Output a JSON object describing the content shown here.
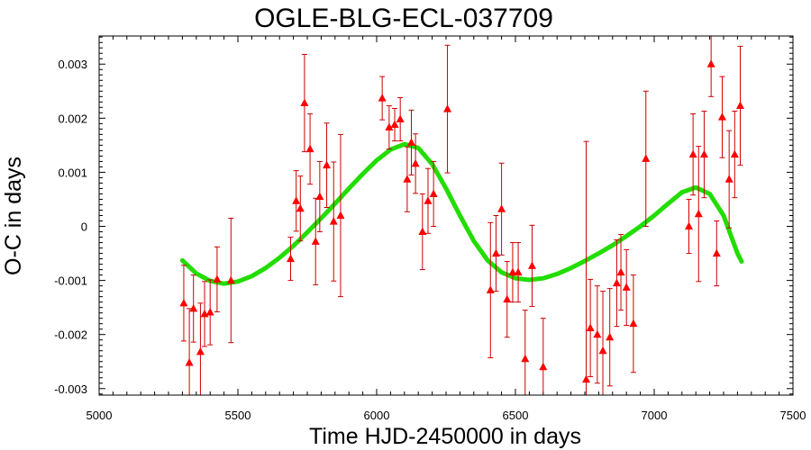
{
  "chart_data": {
    "type": "scatter",
    "title": "OGLE-BLG-ECL-037709",
    "xlabel": "Time HJD-2450000 in days",
    "ylabel": "O-C in days",
    "xlim": [
      5000,
      7500
    ],
    "ylim": [
      -0.00312,
      0.00352
    ],
    "x_ticks": [
      5000,
      5500,
      6000,
      6500,
      7000,
      7500
    ],
    "x_tick_labels": [
      "5000",
      "5500",
      "6000",
      "6500",
      "7000",
      "7500"
    ],
    "y_ticks": [
      -0.003,
      -0.002,
      -0.001,
      0,
      0.001,
      0.002,
      0.003
    ],
    "y_tick_labels": [
      "-0.003",
      "-0.002",
      "-0.001",
      "0",
      "0.001",
      "0.002",
      "0.003"
    ],
    "grid": false,
    "series": [
      {
        "kind": "observations_with_error_bars",
        "color": "#ff0000",
        "marker": "triangle",
        "points": [
          {
            "x": 5305,
            "y": -0.00142,
            "err": 0.0007
          },
          {
            "x": 5325,
            "y": -0.00252,
            "err": 0.001
          },
          {
            "x": 5340,
            "y": -0.00152,
            "err": 0.00062
          },
          {
            "x": 5365,
            "y": -0.00232,
            "err": 0.0009
          },
          {
            "x": 5380,
            "y": -0.00162,
            "err": 0.0006
          },
          {
            "x": 5400,
            "y": -0.00159,
            "err": 0.0006
          },
          {
            "x": 5425,
            "y": -0.00098,
            "err": 0.0006
          },
          {
            "x": 5475,
            "y": -0.001,
            "err": 0.00115
          },
          {
            "x": 5690,
            "y": -0.0006,
            "err": 0.0004
          },
          {
            "x": 5710,
            "y": 0.00047,
            "err": 0.00056
          },
          {
            "x": 5725,
            "y": 0.00033,
            "err": 0.0006
          },
          {
            "x": 5740,
            "y": 0.00228,
            "err": 0.0009
          },
          {
            "x": 5760,
            "y": 0.00143,
            "err": 0.00065
          },
          {
            "x": 5780,
            "y": -0.00028,
            "err": 0.0008
          },
          {
            "x": 5795,
            "y": 0.00055,
            "err": 0.00065
          },
          {
            "x": 5820,
            "y": 0.00113,
            "err": 0.00078
          },
          {
            "x": 5845,
            "y": 9e-05,
            "err": 0.0011
          },
          {
            "x": 5870,
            "y": 0.0002,
            "err": 0.0015
          },
          {
            "x": 6020,
            "y": 0.00237,
            "err": 0.0004
          },
          {
            "x": 6045,
            "y": 0.00183,
            "err": 0.0004
          },
          {
            "x": 6065,
            "y": 0.00188,
            "err": 0.0003
          },
          {
            "x": 6085,
            "y": 0.00198,
            "err": 0.0004
          },
          {
            "x": 6110,
            "y": 0.00087,
            "err": 0.0006
          },
          {
            "x": 6125,
            "y": 0.00155,
            "err": 0.0006
          },
          {
            "x": 6140,
            "y": 0.00116,
            "err": 0.00055
          },
          {
            "x": 6165,
            "y": -0.0001,
            "err": 0.0007
          },
          {
            "x": 6185,
            "y": 0.00047,
            "err": 0.0006
          },
          {
            "x": 6205,
            "y": 0.0006,
            "err": 0.0006
          },
          {
            "x": 6255,
            "y": 0.00217,
            "err": 0.00118
          },
          {
            "x": 6410,
            "y": -0.00118,
            "err": 0.00125
          },
          {
            "x": 6430,
            "y": -0.0005,
            "err": 0.0007
          },
          {
            "x": 6450,
            "y": 0.00032,
            "err": 0.00085
          },
          {
            "x": 6470,
            "y": -0.00135,
            "err": 0.0007
          },
          {
            "x": 6490,
            "y": -0.00085,
            "err": 0.00055
          },
          {
            "x": 6510,
            "y": -0.00085,
            "err": 0.00055
          },
          {
            "x": 6535,
            "y": -0.00245,
            "err": 0.0009
          },
          {
            "x": 6560,
            "y": -0.00073,
            "err": 0.00075
          },
          {
            "x": 6600,
            "y": -0.0026,
            "err": 0.0009
          },
          {
            "x": 6755,
            "y": -0.00283,
            "err": 0.0044
          },
          {
            "x": 6770,
            "y": -0.00188,
            "err": 0.0009
          },
          {
            "x": 6795,
            "y": -0.002,
            "err": 0.0009
          },
          {
            "x": 6815,
            "y": -0.0023,
            "err": 0.0011
          },
          {
            "x": 6840,
            "y": -0.00205,
            "err": 0.0009
          },
          {
            "x": 6865,
            "y": -0.00105,
            "err": 0.0008
          },
          {
            "x": 6880,
            "y": -0.00085,
            "err": 0.0007
          },
          {
            "x": 6900,
            "y": -0.00113,
            "err": 0.0007
          },
          {
            "x": 6925,
            "y": -0.0018,
            "err": 0.0009
          },
          {
            "x": 6970,
            "y": 0.00125,
            "err": 0.00125
          },
          {
            "x": 7125,
            "y": 0.0,
            "err": 0.0005
          },
          {
            "x": 7140,
            "y": 0.00133,
            "err": 0.00075
          },
          {
            "x": 7160,
            "y": 0.00023,
            "err": 0.00125
          },
          {
            "x": 7180,
            "y": 0.00133,
            "err": 0.0008
          },
          {
            "x": 7205,
            "y": 0.003,
            "err": 0.0006
          },
          {
            "x": 7225,
            "y": -0.0005,
            "err": 0.0006
          },
          {
            "x": 7245,
            "y": 0.00202,
            "err": 0.00075
          },
          {
            "x": 7270,
            "y": 0.00087,
            "err": 0.0009
          },
          {
            "x": 7290,
            "y": 0.00133,
            "err": 0.0008
          },
          {
            "x": 7310,
            "y": 0.00223,
            "err": 0.0011
          }
        ]
      },
      {
        "kind": "fit_curve",
        "color": "#22dd00",
        "x": [
          5300,
          5350,
          5400,
          5450,
          5500,
          5550,
          5600,
          5650,
          5700,
          5750,
          5800,
          5850,
          5900,
          5950,
          6000,
          6050,
          6100,
          6150,
          6200,
          6250,
          6300,
          6350,
          6400,
          6450,
          6500,
          6550,
          6600,
          6650,
          6700,
          6750,
          6800,
          6850,
          6900,
          6950,
          7000,
          7050,
          7100,
          7150,
          7200,
          7250,
          7300,
          7315
        ],
        "y": [
          -0.00063,
          -0.00087,
          -0.00101,
          -0.00106,
          -0.00102,
          -0.00092,
          -0.00077,
          -0.00058,
          -0.00036,
          -0.00011,
          0.00015,
          0.00042,
          0.0007,
          0.00097,
          0.00122,
          0.00142,
          0.00152,
          0.00145,
          0.00115,
          0.0007,
          0.0002,
          -0.00027,
          -0.00063,
          -0.00085,
          -0.00096,
          -0.00099,
          -0.00096,
          -0.00088,
          -0.00077,
          -0.00064,
          -0.0005,
          -0.00035,
          -0.00018,
          0.0,
          0.0002,
          0.00042,
          0.00063,
          0.00072,
          0.0006,
          0.0002,
          -0.0005,
          -0.00065
        ]
      }
    ]
  }
}
